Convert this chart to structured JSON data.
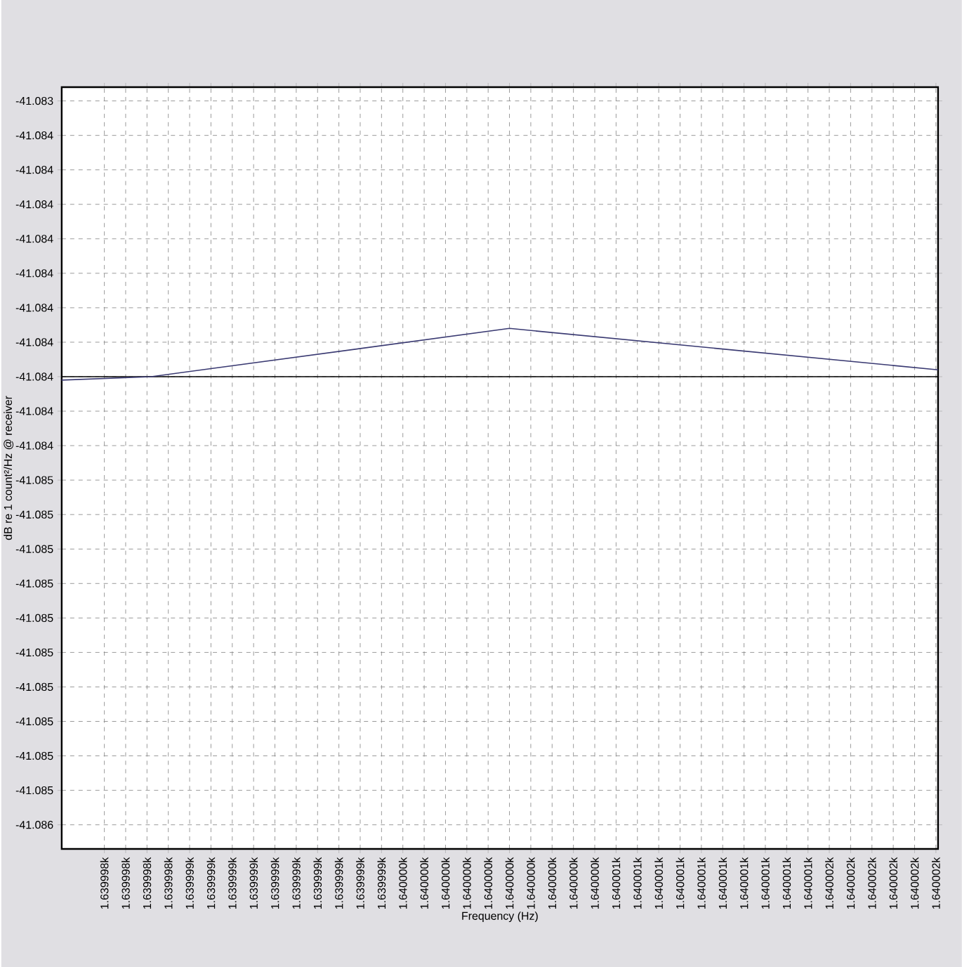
{
  "chart_data": {
    "type": "line",
    "xlabel": "Frequency (Hz)",
    "ylabel": "dB re 1 count²/Hz @ receiver",
    "xlim": [
      1639.9979,
      1640.00201
    ],
    "ylim": [
      -41.08557,
      -41.08336
    ],
    "xticks": [
      {
        "value": 1639.9981,
        "label": "1.639998k"
      },
      {
        "value": 1639.9982,
        "label": "1.639998k"
      },
      {
        "value": 1639.9983,
        "label": "1.639998k"
      },
      {
        "value": 1639.9984,
        "label": "1.639998k"
      },
      {
        "value": 1639.9985,
        "label": "1.639999k"
      },
      {
        "value": 1639.9986,
        "label": "1.639999k"
      },
      {
        "value": 1639.9987,
        "label": "1.639999k"
      },
      {
        "value": 1639.9988,
        "label": "1.639999k"
      },
      {
        "value": 1639.9989,
        "label": "1.639999k"
      },
      {
        "value": 1639.999,
        "label": "1.639999k"
      },
      {
        "value": 1639.9991,
        "label": "1.639999k"
      },
      {
        "value": 1639.9992,
        "label": "1.639999k"
      },
      {
        "value": 1639.9993,
        "label": "1.639999k"
      },
      {
        "value": 1639.9994,
        "label": "1.639999k"
      },
      {
        "value": 1639.9995,
        "label": "1.640000k"
      },
      {
        "value": 1639.9996,
        "label": "1.640000k"
      },
      {
        "value": 1639.9997,
        "label": "1.640000k"
      },
      {
        "value": 1639.9998,
        "label": "1.640000k"
      },
      {
        "value": 1639.9999,
        "label": "1.640000k"
      },
      {
        "value": 1640.0,
        "label": "1.640000k"
      },
      {
        "value": 1640.0001,
        "label": "1.640000k"
      },
      {
        "value": 1640.0002,
        "label": "1.640000k"
      },
      {
        "value": 1640.0003,
        "label": "1.640000k"
      },
      {
        "value": 1640.0004,
        "label": "1.640000k"
      },
      {
        "value": 1640.0005,
        "label": "1.640001k"
      },
      {
        "value": 1640.0006,
        "label": "1.640001k"
      },
      {
        "value": 1640.0007,
        "label": "1.640001k"
      },
      {
        "value": 1640.0008,
        "label": "1.640001k"
      },
      {
        "value": 1640.0009,
        "label": "1.640001k"
      },
      {
        "value": 1640.001,
        "label": "1.640001k"
      },
      {
        "value": 1640.0011,
        "label": "1.640001k"
      },
      {
        "value": 1640.0012,
        "label": "1.640001k"
      },
      {
        "value": 1640.0013,
        "label": "1.640001k"
      },
      {
        "value": 1640.0014,
        "label": "1.640001k"
      },
      {
        "value": 1640.0015,
        "label": "1.640002k"
      },
      {
        "value": 1640.0016,
        "label": "1.640002k"
      },
      {
        "value": 1640.0017,
        "label": "1.640002k"
      },
      {
        "value": 1640.0018,
        "label": "1.640002k"
      },
      {
        "value": 1640.0019,
        "label": "1.640002k"
      },
      {
        "value": 1640.002,
        "label": "1.640002k"
      }
    ],
    "yticks": [
      {
        "value": -41.0834,
        "label": "-41.083"
      },
      {
        "value": -41.0835,
        "label": "-41.084"
      },
      {
        "value": -41.0836,
        "label": "-41.084"
      },
      {
        "value": -41.0837,
        "label": "-41.084"
      },
      {
        "value": -41.0838,
        "label": "-41.084"
      },
      {
        "value": -41.0839,
        "label": "-41.084"
      },
      {
        "value": -41.084,
        "label": "-41.084"
      },
      {
        "value": -41.0841,
        "label": "-41.084"
      },
      {
        "value": -41.0842,
        "label": "-41.084"
      },
      {
        "value": -41.0843,
        "label": "-41.084"
      },
      {
        "value": -41.0844,
        "label": "-41.084"
      },
      {
        "value": -41.0845,
        "label": "-41.085"
      },
      {
        "value": -41.0846,
        "label": "-41.085"
      },
      {
        "value": -41.0847,
        "label": "-41.085"
      },
      {
        "value": -41.0848,
        "label": "-41.085"
      },
      {
        "value": -41.0849,
        "label": "-41.085"
      },
      {
        "value": -41.085,
        "label": "-41.085"
      },
      {
        "value": -41.0851,
        "label": "-41.085"
      },
      {
        "value": -41.0852,
        "label": "-41.085"
      },
      {
        "value": -41.0853,
        "label": "-41.085"
      },
      {
        "value": -41.0854,
        "label": "-41.085"
      },
      {
        "value": -41.0855,
        "label": "-41.086"
      }
    ],
    "grid": true,
    "series": [
      {
        "color": "#000000",
        "x": [
          1639.9979,
          1640.00201
        ],
        "values": [
          -41.0842,
          -41.0842
        ]
      },
      {
        "color": "#3a3a72",
        "x": [
          1639.9979,
          1639.99832,
          1640.0,
          1640.00201
        ],
        "values": [
          -41.08421,
          -41.0842,
          -41.08406,
          -41.08418
        ]
      }
    ]
  }
}
